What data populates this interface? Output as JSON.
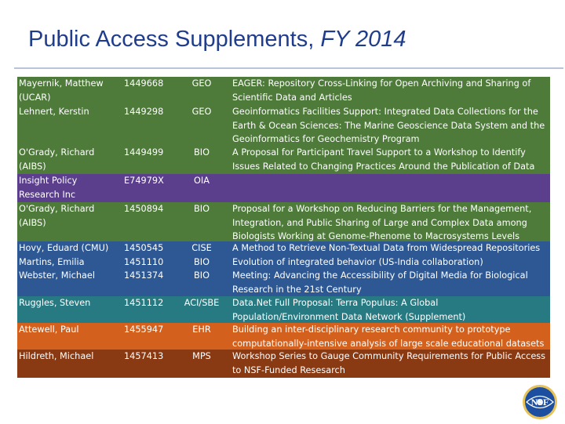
{
  "slide": {
    "title_main": "Public Access Supplements, ",
    "title_italic": "FY 2014"
  },
  "colors": {
    "title": "#1f3d8c",
    "green": "#4e7a3a",
    "purple": "#5b3f8d",
    "blue": "#2e5893",
    "teal": "#287a82",
    "orange": "#d3611d",
    "brown": "#8a3a13"
  },
  "rows": {
    "r0": {
      "name": [
        "Mayernik, Matthew",
        "(UCAR)"
      ],
      "num": [
        "1449668"
      ],
      "dir": [
        "GEO"
      ],
      "title": [
        "EAGER: Repository Cross-Linking for Open Archiving and Sharing of",
        "Scientific Data and Articles"
      ]
    },
    "r1": {
      "name": [
        "Lehnert, Kerstin"
      ],
      "num": [
        "1449298"
      ],
      "dir": [
        "GEO"
      ],
      "title": [
        "Geoinformatics Facilities Support: Integrated Data Collections for the",
        "Earth & Ocean Sciences: The Marine Geoscience Data System and the",
        "Geoinformatics for Geochemistry Program"
      ]
    },
    "r2": {
      "name": [
        "O'Grady, Richard",
        "(AIBS)"
      ],
      "num": [
        "1449499"
      ],
      "dir": [
        "BIO"
      ],
      "title": [
        "A Proposal for Participant Travel Support to a Workshop to Identify",
        "Issues Related to Changing Practices Around the Publication of Data"
      ]
    },
    "r3": {
      "name": [
        "Insight Policy",
        "Research Inc"
      ],
      "num": [
        "E74979X"
      ],
      "dir": [
        "OIA"
      ],
      "title": []
    },
    "r4": {
      "name": [
        "O'Grady, Richard",
        "(AIBS)"
      ],
      "num": [
        "1450894"
      ],
      "dir": [
        "BIO"
      ],
      "title": [
        "Proposal for a Workshop on Reducing Barriers for the Management,",
        "Integration, and Public Sharing of Large and Complex Data among",
        "Biologists Working at Genome-Phenome to Macrosystems Levels"
      ]
    },
    "r5": {
      "name": [
        "Hovy, Eduard (CMU)",
        "Martins, Emilia",
        "Webster, Michael"
      ],
      "num": [
        "1450545",
        "1451110",
        "1451374"
      ],
      "dir": [
        "CISE",
        "BIO",
        "BIO"
      ],
      "title": [
        "A Method to Retrieve Non-Textual Data from Widespread Repositories",
        "Evolution of integrated behavior (US-India collaboration)",
        "Meeting: Advancing the Accessibility of Digital Media for Biological",
        "Research in the 21st Century"
      ]
    },
    "r6": {
      "name": [
        "Ruggles, Steven"
      ],
      "num": [
        "1451112"
      ],
      "dir": [
        "ACI/SBE"
      ],
      "title": [
        "Data.Net Full Proposal: Terra Populus: A Global",
        "Population/Environment Data Network (Supplement)"
      ]
    },
    "r7": {
      "name": [
        "Attewell, Paul"
      ],
      "num": [
        "1455947"
      ],
      "dir": [
        "EHR"
      ],
      "title": [
        "Building an inter-disciplinary research community to prototype",
        "computationally-intensive analysis of large scale educational datasets"
      ]
    },
    "r8": {
      "name": [
        "Hildreth, Michael"
      ],
      "num": [
        "1457413"
      ],
      "dir": [
        "MPS"
      ],
      "title": [
        "Workshop Series to Gauge Community Requirements for Public Access",
        "to NSF-Funded Resesarch"
      ]
    }
  },
  "logo": {
    "text": "NSF",
    "icon": "nsf-logo-icon"
  }
}
